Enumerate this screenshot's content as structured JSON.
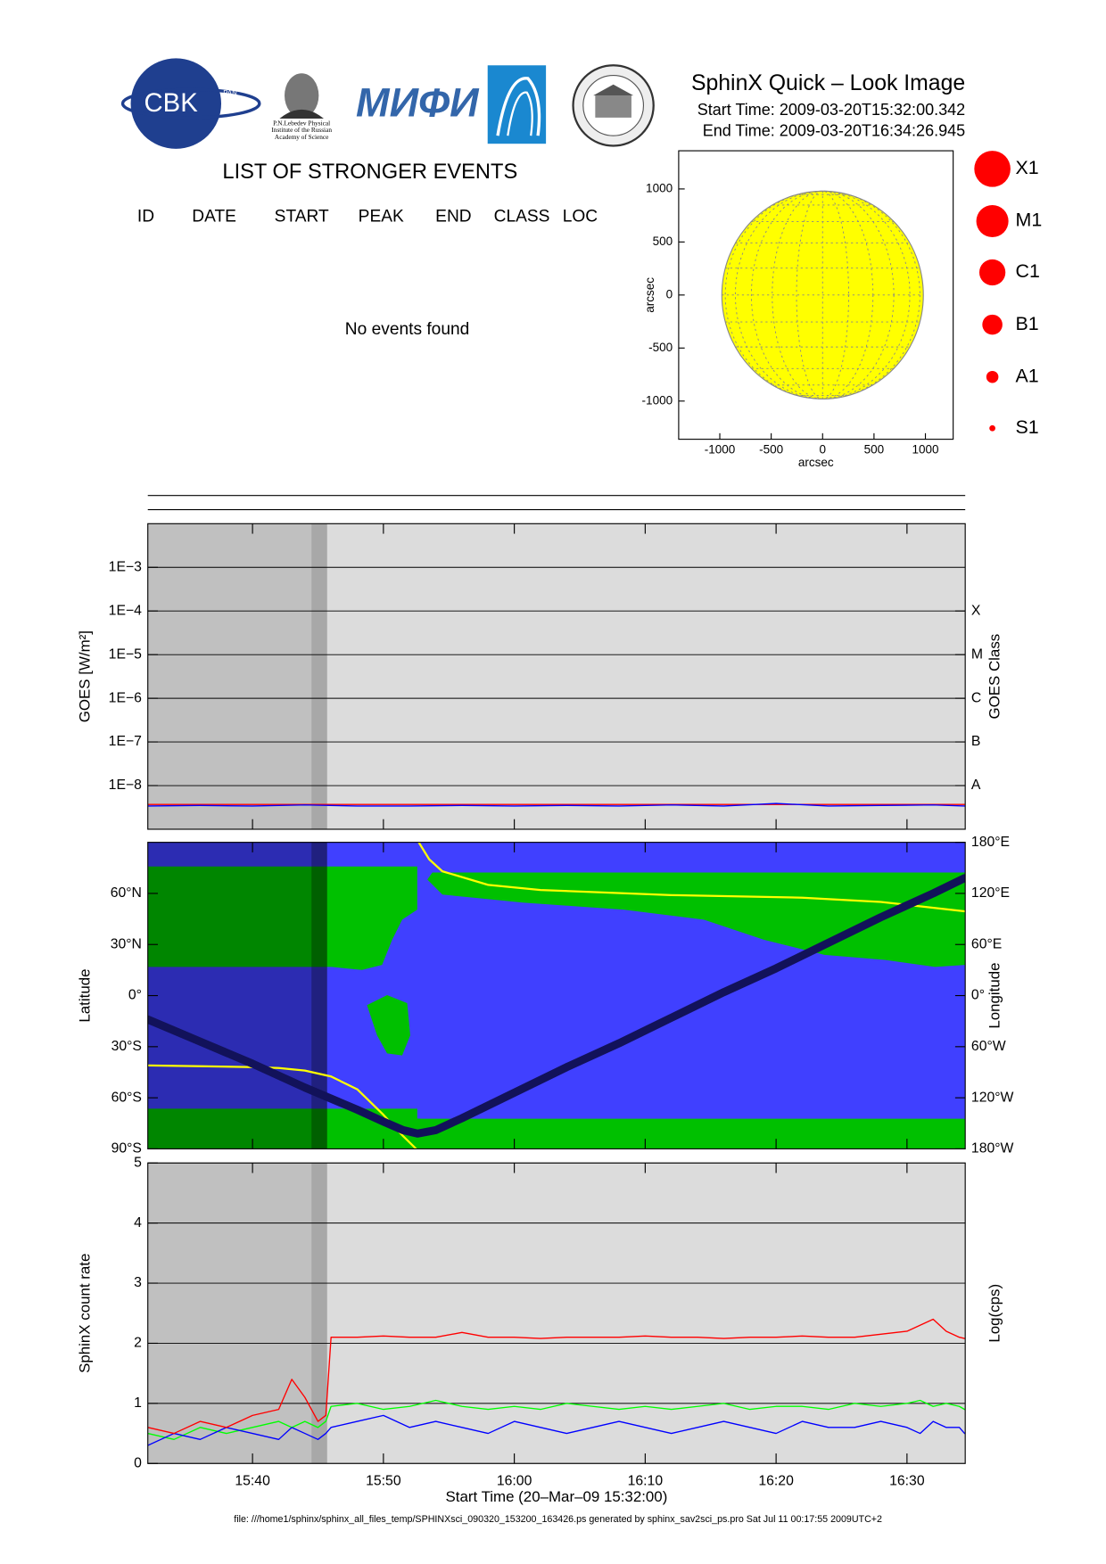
{
  "header": {
    "title": "SphinX Quick – Look Image",
    "start_time": "Start Time: 2009-03-20T15:32:00.342",
    "end_time": "End Time: 2009-03-20T16:34:26.945"
  },
  "logos": {
    "cbk": "CBK",
    "cbk_sub": "PAN",
    "lebedev": [
      "P.N.Lebedev Physical",
      "Institute of the Russian",
      "Academy of Science"
    ],
    "mifi": "МИФИ"
  },
  "events": {
    "title": "LIST OF STRONGER EVENTS",
    "columns": [
      "ID",
      "DATE",
      "START",
      "PEAK",
      "END",
      "CLASS",
      "LOC"
    ],
    "message": "No events found"
  },
  "class_legend": [
    "X1",
    "M1",
    "C1",
    "B1",
    "A1",
    "S1"
  ],
  "footer": "file: ///home1/sphinx/sphinx_all_files_temp/SPHINXsci_090320_153200_163426.ps generated by sphinx_sav2sci_ps.pro Sat Jul 11 00:17:55 2009UTC+2",
  "chart_data": [
    {
      "type": "disk",
      "xlabel": "arcsec",
      "ylabel": "arcsec",
      "xlim": [
        -1400,
        1270
      ],
      "ylim": [
        -1360,
        1360
      ],
      "xticks": [
        -1000,
        -500,
        0,
        500,
        1000
      ],
      "yticks": [
        -1000,
        -500,
        0,
        500,
        1000
      ],
      "disk_radius": 980,
      "color": "#ffff00"
    },
    {
      "type": "line",
      "ylabel": "GOES [W/m²]",
      "y2label": "GOES Class",
      "log_scale": true,
      "grid": true,
      "background": "#dcdcdc",
      "shading": [
        {
          "start": 0,
          "end": 12.5,
          "color": "#c0c0c0"
        },
        {
          "start": 12.5,
          "end": 13.7,
          "color": "#a8a8a8"
        }
      ],
      "xlim": [
        0,
        62.45
      ],
      "ylim": [
        1e-09,
        0.01
      ],
      "y2lim": [
        1e-09,
        0.01
      ],
      "yticks": [
        {
          "value": 0.001,
          "label": "1E−3"
        },
        {
          "value": 0.0001,
          "label": "1E−4"
        },
        {
          "value": 1e-05,
          "label": "1E−5"
        },
        {
          "value": 1e-06,
          "label": "1E−6"
        },
        {
          "value": 1e-07,
          "label": "1E−7"
        },
        {
          "value": 1e-08,
          "label": "1E−8"
        }
      ],
      "y2ticks": [
        {
          "value": 0.0001,
          "label": "X"
        },
        {
          "value": 1e-05,
          "label": "M"
        },
        {
          "value": 1e-06,
          "label": "C"
        },
        {
          "value": 1e-07,
          "label": "B"
        },
        {
          "value": 1e-08,
          "label": "A"
        }
      ],
      "x": [
        0,
        4,
        8,
        12,
        16,
        20,
        24,
        28,
        32,
        36,
        40,
        44,
        48,
        52,
        56,
        60,
        62.4
      ],
      "series": [
        {
          "color": "#ff0000",
          "values": [
            3.7e-09,
            3.7e-09,
            3.7e-09,
            3.7e-09,
            3.7e-09,
            3.7e-09,
            3.7e-09,
            3.7e-09,
            3.7e-09,
            3.7e-09,
            3.7e-09,
            3.7e-09,
            3.7e-09,
            3.7e-09,
            3.7e-09,
            3.7e-09,
            3.7e-09
          ]
        },
        {
          "color": "#0000ff",
          "values": [
            3.4e-09,
            3.5e-09,
            3.4e-09,
            3.6e-09,
            3.4e-09,
            3.4e-09,
            3.5e-09,
            3.4e-09,
            3.5e-09,
            3.4e-09,
            3.6e-09,
            3.4e-09,
            3.9e-09,
            3.4e-09,
            3.5e-09,
            3.6e-09,
            3.4e-09
          ]
        }
      ]
    },
    {
      "type": "line",
      "ylabel": "Latitude",
      "y2label": "Longitude",
      "grid": false,
      "background": "#4040ff",
      "land_color": "#00c000",
      "shading": [
        {
          "start": 0,
          "end": 12.5,
          "color": "rgba(0,0,0,0.3)"
        },
        {
          "start": 12.5,
          "end": 13.7,
          "color": "rgba(0,0,0,0.5)"
        }
      ],
      "xlim": [
        0,
        62.45
      ],
      "ylim": [
        -90,
        90
      ],
      "y2lim": [
        -180,
        180
      ],
      "yticks": [
        {
          "value": 60,
          "label": "60°N"
        },
        {
          "value": 30,
          "label": "30°N"
        },
        {
          "value": 0,
          "label": "0°"
        },
        {
          "value": -30,
          "label": "30°S"
        },
        {
          "value": -60,
          "label": "60°S"
        },
        {
          "value": -90,
          "label": "90°S"
        }
      ],
      "y2ticks": [
        {
          "value": 180,
          "label": "180°E"
        },
        {
          "value": 120,
          "label": "120°E"
        },
        {
          "value": 60,
          "label": "60°E"
        },
        {
          "value": 0,
          "label": "0°"
        },
        {
          "value": -60,
          "label": "60°W"
        },
        {
          "value": -120,
          "label": "120°W"
        },
        {
          "value": -180,
          "label": "180°W"
        }
      ],
      "x": [
        0,
        4,
        8,
        10,
        12,
        14,
        16,
        18,
        19.5,
        20.5,
        20.6,
        20.7,
        21.5,
        22.5,
        26,
        30,
        40,
        50,
        56,
        62.4
      ],
      "series": [
        {
          "color": "#ffff00",
          "axis": "y2",
          "width": 2,
          "values": [
            -82,
            -83,
            -84,
            -85,
            -88,
            -95,
            -110,
            -140,
            -165,
            -180,
            null,
            180,
            160,
            146,
            130,
            124,
            118,
            115,
            110,
            99
          ]
        }
      ],
      "track": {
        "color": "#12125a",
        "width": 8,
        "x": [
          0,
          4,
          8,
          12,
          16,
          18,
          19.5,
          20.6,
          22,
          24,
          28,
          32,
          36,
          40,
          44,
          48,
          52,
          56,
          60,
          62.4
        ],
        "values": [
          -14,
          -27,
          -40,
          -54,
          -67,
          -74,
          -79,
          -81,
          -79,
          -72,
          -57,
          -42,
          -28,
          -13,
          2,
          16,
          31,
          46,
          60,
          69
        ]
      }
    },
    {
      "type": "line",
      "ylabel": "SphinX count rate",
      "y2label": "Log(cps)",
      "xlabel": "Start Time (20–Mar–09 15:32:00)",
      "grid": true,
      "background": "#dcdcdc",
      "shading": [
        {
          "start": 0,
          "end": 12.5,
          "color": "#c0c0c0"
        },
        {
          "start": 12.5,
          "end": 13.7,
          "color": "#a8a8a8"
        }
      ],
      "xlim": [
        0,
        62.45
      ],
      "ylim": [
        0,
        5
      ],
      "yticks": [
        0,
        1,
        2,
        3,
        4,
        5
      ],
      "xticks": [
        {
          "value": 8,
          "label": "15:40"
        },
        {
          "value": 18,
          "label": "15:50"
        },
        {
          "value": 28,
          "label": "16:00"
        },
        {
          "value": 38,
          "label": "16:10"
        },
        {
          "value": 48,
          "label": "16:20"
        },
        {
          "value": 58,
          "label": "16:30"
        }
      ],
      "x": [
        0,
        2,
        4,
        6,
        8,
        10,
        11,
        12,
        13,
        13.6,
        14,
        16,
        18,
        20,
        22,
        24,
        26,
        28,
        30,
        32,
        34,
        36,
        38,
        40,
        42,
        44,
        46,
        48,
        50,
        52,
        54,
        56,
        58,
        59,
        60,
        61,
        62,
        62.4
      ],
      "series": [
        {
          "color": "#00ff00",
          "values": [
            0.5,
            0.4,
            0.6,
            0.5,
            0.6,
            0.7,
            0.6,
            0.7,
            0.6,
            0.7,
            0.95,
            1.0,
            0.9,
            0.95,
            1.05,
            0.95,
            0.9,
            0.95,
            0.9,
            1.0,
            0.95,
            0.9,
            0.95,
            0.9,
            0.95,
            1.0,
            0.9,
            0.95,
            0.95,
            0.9,
            1.0,
            0.95,
            1.0,
            1.05,
            0.95,
            1.0,
            0.95,
            0.9
          ]
        },
        {
          "color": "#0000ff",
          "values": [
            0.3,
            0.5,
            0.4,
            0.6,
            0.5,
            0.4,
            0.6,
            0.5,
            0.4,
            0.5,
            0.6,
            0.7,
            0.8,
            0.6,
            0.7,
            0.6,
            0.5,
            0.7,
            0.6,
            0.5,
            0.6,
            0.7,
            0.6,
            0.5,
            0.6,
            0.7,
            0.6,
            0.5,
            0.7,
            0.6,
            0.6,
            0.7,
            0.6,
            0.5,
            0.7,
            0.6,
            0.6,
            0.5
          ]
        },
        {
          "color": "#ff0000",
          "values": [
            0.6,
            0.5,
            0.7,
            0.6,
            0.8,
            0.9,
            1.4,
            1.1,
            0.7,
            0.8,
            2.1,
            2.1,
            2.12,
            2.1,
            2.1,
            2.18,
            2.1,
            2.1,
            2.08,
            2.1,
            2.1,
            2.1,
            2.12,
            2.1,
            2.1,
            2.08,
            2.1,
            2.1,
            2.12,
            2.1,
            2.1,
            2.15,
            2.2,
            2.3,
            2.4,
            2.2,
            2.1,
            2.08
          ]
        }
      ]
    }
  ]
}
